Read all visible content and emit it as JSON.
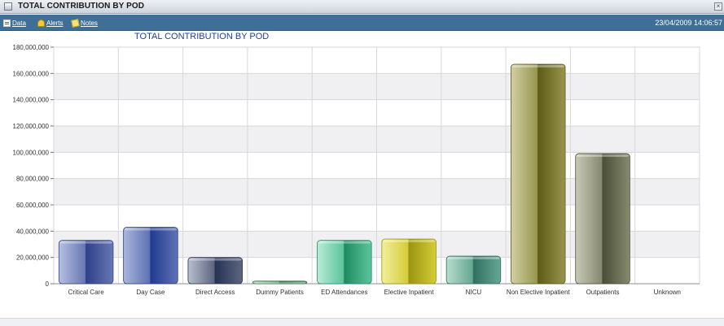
{
  "window": {
    "title": "TOTAL CONTRIBUTION BY POD",
    "icon": "document-window-icon"
  },
  "toolbar": {
    "data_label": "Data",
    "alerts_label": "Alerts",
    "notes_label": "Notes",
    "timestamp": "23/04/2009 14:06:57"
  },
  "colors": {
    "toolbar_bg": "#3e6f98",
    "plot_bg_light": "#ffffff",
    "plot_bg_band": "#f0f0f3",
    "grid": "#d7d7de"
  },
  "chart_data": {
    "type": "bar",
    "title": "TOTAL CONTRIBUTION BY POD",
    "xlabel": "",
    "ylabel": "",
    "ylim": [
      0,
      180000000
    ],
    "yticks": [
      0,
      20000000,
      40000000,
      60000000,
      80000000,
      100000000,
      120000000,
      140000000,
      160000000,
      180000000
    ],
    "ytick_labels": [
      "0",
      "20,000,000",
      "40,000,000",
      "60,000,000",
      "80,000,000",
      "100,000,000",
      "120,000,000",
      "140,000,000",
      "160,000,000",
      "180,000,000"
    ],
    "grid": true,
    "legend": "none",
    "categories": [
      "Critical Care",
      "Day Case",
      "Direct Access",
      "Dummy Patients",
      "ED Attendances",
      "Elective Inpatient",
      "NICU",
      "Non Elective Inpatient",
      "Outpatients",
      "Unknown"
    ],
    "values": [
      33000000,
      43000000,
      20000000,
      2000000,
      33000000,
      34000000,
      21000000,
      167000000,
      99000000,
      0
    ],
    "bar_colors": [
      [
        "#b6c0de",
        "#6878b4",
        "#2f3f8a"
      ],
      [
        "#aab6db",
        "#5f72b6",
        "#233b8f"
      ],
      [
        "#b8bfcd",
        "#5d6680",
        "#263256"
      ],
      [
        "#a8d5b2",
        "#5aa06a",
        "#2f6c3d"
      ],
      [
        "#b9ecd7",
        "#5cc49c",
        "#1f8a61"
      ],
      [
        "#f2ef9c",
        "#d4cc38",
        "#9a9410"
      ],
      [
        "#b8dccc",
        "#66a893",
        "#2f7060"
      ],
      [
        "#d2d0a3",
        "#999550",
        "#5c5a14"
      ],
      [
        "#c9cab6",
        "#868a70",
        "#4a4e36"
      ],
      [
        "#cccccc",
        "#999999",
        "#666666"
      ]
    ]
  }
}
